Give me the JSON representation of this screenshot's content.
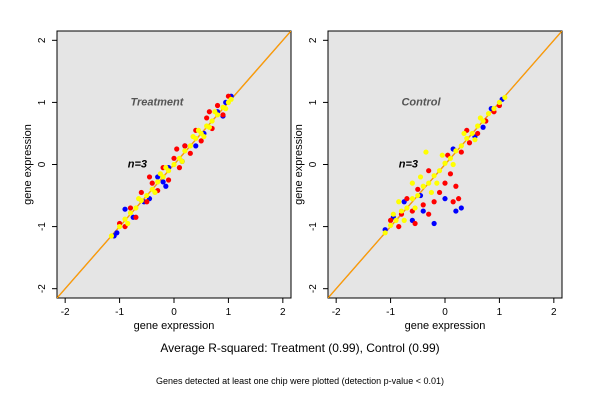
{
  "colors": {
    "background": "#ffffff",
    "panel_fill": "#e5e5e5",
    "reference_line": "#b22222",
    "fit_line": "#ffa500",
    "series_blue": "#0000ff",
    "series_red": "#ff0000",
    "series_yellow": "#ffff00",
    "label_text": "#555555"
  },
  "footer": {
    "summary": "Average R-squared: Treatment (0.99), Control (0.99)",
    "note": "Genes detected at least one chip were plotted (detection p-value < 0.01)"
  },
  "chart_data": [
    {
      "type": "scatter",
      "title": "Treatment",
      "annotation": "n=3",
      "xlabel": "gene expression",
      "ylabel": "gene expression",
      "xlim": [
        -2.15,
        2.15
      ],
      "ylim": [
        -2.15,
        2.15
      ],
      "xticks": [
        -2,
        -1,
        0,
        1,
        2
      ],
      "yticks": [
        -2,
        -1,
        0,
        1,
        2
      ],
      "grid": false,
      "legend": "none",
      "reference_lines": [
        {
          "name": "identity",
          "slope": 1,
          "intercept": 0,
          "color": "#b22222"
        },
        {
          "name": "fit",
          "slope": 1,
          "intercept": 0,
          "color": "#ffa500"
        }
      ],
      "series": [
        {
          "color": "#0000ff",
          "values": [
            [
              -1.05,
              -1.1
            ],
            [
              -0.9,
              -0.72
            ],
            [
              -0.55,
              -0.6
            ],
            [
              -0.3,
              -0.2
            ],
            [
              -0.1,
              -0.05
            ],
            [
              0.15,
              0.05
            ],
            [
              0.55,
              0.5
            ],
            [
              0.8,
              0.85
            ],
            [
              0.95,
              1.0
            ],
            [
              1.05,
              1.1
            ],
            [
              -1.1,
              -1.15
            ],
            [
              0.4,
              0.3
            ],
            [
              -0.2,
              -0.28
            ],
            [
              0.2,
              0.3
            ],
            [
              0.9,
              0.78
            ],
            [
              -0.75,
              -0.85
            ],
            [
              -0.45,
              -0.55
            ],
            [
              -0.15,
              -0.35
            ]
          ]
        },
        {
          "color": "#ff0000",
          "values": [
            [
              -1.0,
              -0.95
            ],
            [
              -0.8,
              -0.7
            ],
            [
              -0.6,
              -0.45
            ],
            [
              -0.4,
              -0.3
            ],
            [
              -0.2,
              -0.05
            ],
            [
              0.0,
              0.1
            ],
            [
              0.2,
              0.3
            ],
            [
              0.4,
              0.55
            ],
            [
              0.6,
              0.75
            ],
            [
              0.8,
              0.95
            ],
            [
              1.0,
              1.1
            ],
            [
              -0.7,
              -0.85
            ],
            [
              -0.5,
              -0.6
            ],
            [
              -0.3,
              -0.42
            ],
            [
              -0.1,
              -0.25
            ],
            [
              0.1,
              -0.05
            ],
            [
              0.3,
              0.18
            ],
            [
              0.5,
              0.38
            ],
            [
              0.7,
              0.58
            ],
            [
              0.9,
              0.8
            ],
            [
              -0.9,
              -1.0
            ],
            [
              -0.45,
              -0.2
            ],
            [
              0.05,
              0.25
            ],
            [
              0.65,
              0.85
            ]
          ]
        },
        {
          "color": "#ffff00",
          "values": [
            [
              -1.15,
              -1.15
            ],
            [
              -1.0,
              -1.0
            ],
            [
              -0.9,
              -0.88
            ],
            [
              -0.8,
              -0.78
            ],
            [
              -0.7,
              -0.7
            ],
            [
              -0.6,
              -0.58
            ],
            [
              -0.5,
              -0.5
            ],
            [
              -0.4,
              -0.4
            ],
            [
              -0.3,
              -0.28
            ],
            [
              -0.2,
              -0.2
            ],
            [
              -0.1,
              -0.1
            ],
            [
              0.0,
              0.0
            ],
            [
              0.1,
              0.1
            ],
            [
              0.2,
              0.22
            ],
            [
              0.3,
              0.3
            ],
            [
              0.4,
              0.42
            ],
            [
              0.5,
              0.5
            ],
            [
              0.6,
              0.62
            ],
            [
              0.7,
              0.7
            ],
            [
              0.8,
              0.8
            ],
            [
              0.9,
              0.92
            ],
            [
              1.0,
              1.0
            ],
            [
              1.05,
              1.05
            ],
            [
              -0.85,
              -0.95
            ],
            [
              -0.65,
              -0.55
            ],
            [
              -0.35,
              -0.45
            ],
            [
              -0.15,
              -0.05
            ],
            [
              0.15,
              0.05
            ],
            [
              0.35,
              0.45
            ],
            [
              0.55,
              0.45
            ],
            [
              0.75,
              0.85
            ],
            [
              0.95,
              0.9
            ],
            [
              -0.25,
              -0.15
            ],
            [
              0.45,
              0.55
            ],
            [
              0.65,
              0.6
            ]
          ]
        }
      ]
    },
    {
      "type": "scatter",
      "title": "Control",
      "annotation": "n=3",
      "xlabel": "gene expression",
      "ylabel": "gene expression",
      "xlim": [
        -2.15,
        2.15
      ],
      "ylim": [
        -2.15,
        2.15
      ],
      "xticks": [
        -2,
        -1,
        0,
        1,
        2
      ],
      "yticks": [
        -2,
        -1,
        0,
        1,
        2
      ],
      "grid": false,
      "legend": "none",
      "reference_lines": [
        {
          "name": "identity",
          "slope": 1,
          "intercept": 0,
          "color": "#b22222"
        },
        {
          "name": "fit",
          "slope": 1,
          "intercept": 0,
          "color": "#ffa500"
        }
      ],
      "series": [
        {
          "color": "#0000ff",
          "values": [
            [
              -1.1,
              -1.05
            ],
            [
              -0.95,
              -0.85
            ],
            [
              -0.6,
              -0.9
            ],
            [
              -0.4,
              -0.75
            ],
            [
              -0.2,
              -0.95
            ],
            [
              0.0,
              -0.55
            ],
            [
              0.2,
              -0.75
            ],
            [
              0.3,
              -0.7
            ],
            [
              0.55,
              0.45
            ],
            [
              0.85,
              0.9
            ],
            [
              1.05,
              1.05
            ],
            [
              -0.75,
              -0.6
            ],
            [
              0.15,
              0.25
            ],
            [
              -0.45,
              -0.5
            ],
            [
              0.7,
              0.6
            ]
          ]
        },
        {
          "color": "#ff0000",
          "values": [
            [
              -1.0,
              -0.9
            ],
            [
              -0.8,
              -0.8
            ],
            [
              -0.7,
              -0.55
            ],
            [
              -0.6,
              -0.75
            ],
            [
              -0.5,
              -0.4
            ],
            [
              -0.4,
              -0.65
            ],
            [
              -0.3,
              -0.8
            ],
            [
              -0.2,
              -0.6
            ],
            [
              -0.1,
              -0.45
            ],
            [
              0.0,
              -0.3
            ],
            [
              0.1,
              -0.15
            ],
            [
              0.2,
              -0.35
            ],
            [
              0.25,
              -0.55
            ],
            [
              0.3,
              0.2
            ],
            [
              0.45,
              0.35
            ],
            [
              0.6,
              0.5
            ],
            [
              0.75,
              0.7
            ],
            [
              0.9,
              0.85
            ],
            [
              1.0,
              0.95
            ],
            [
              -0.85,
              -1.0
            ],
            [
              -0.3,
              -0.1
            ],
            [
              0.05,
              0.15
            ],
            [
              0.15,
              -0.6
            ],
            [
              -0.55,
              -0.95
            ],
            [
              0.4,
              0.55
            ]
          ]
        },
        {
          "color": "#ffff00",
          "values": [
            [
              -1.1,
              -1.1
            ],
            [
              -1.0,
              -0.98
            ],
            [
              -0.9,
              -0.9
            ],
            [
              -0.8,
              -0.75
            ],
            [
              -0.7,
              -0.7
            ],
            [
              -0.6,
              -0.55
            ],
            [
              -0.5,
              -0.5
            ],
            [
              -0.4,
              -0.35
            ],
            [
              -0.3,
              -0.3
            ],
            [
              -0.2,
              -0.18
            ],
            [
              -0.1,
              -0.1
            ],
            [
              0.0,
              0.02
            ],
            [
              0.1,
              0.1
            ],
            [
              0.2,
              0.22
            ],
            [
              0.3,
              0.3
            ],
            [
              0.4,
              0.42
            ],
            [
              0.5,
              0.5
            ],
            [
              0.6,
              0.62
            ],
            [
              0.7,
              0.7
            ],
            [
              0.8,
              0.82
            ],
            [
              0.9,
              0.9
            ],
            [
              1.0,
              1.0
            ],
            [
              1.1,
              1.08
            ],
            [
              -0.95,
              -0.8
            ],
            [
              -0.75,
              -0.9
            ],
            [
              -0.55,
              -0.7
            ],
            [
              -0.45,
              -0.2
            ],
            [
              -0.25,
              -0.45
            ],
            [
              -0.05,
              0.15
            ],
            [
              0.15,
              0.0
            ],
            [
              0.35,
              0.5
            ],
            [
              0.55,
              0.4
            ],
            [
              -0.35,
              0.2
            ],
            [
              -0.6,
              -0.3
            ],
            [
              0.65,
              0.75
            ],
            [
              -0.85,
              -0.6
            ],
            [
              -0.15,
              -0.3
            ]
          ]
        }
      ]
    }
  ]
}
